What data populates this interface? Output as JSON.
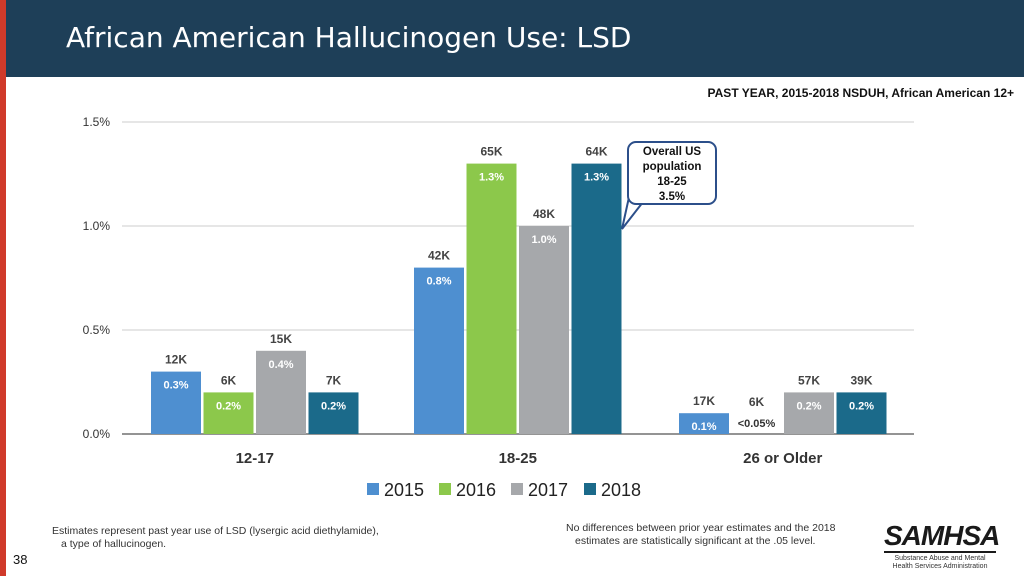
{
  "title": "African American Hallucinogen Use: LSD",
  "subtitle": "PAST YEAR, 2015-2018  NSDUH, African American 12+",
  "page_number": "38",
  "footnote_left": [
    "Estimates represent past year use of LSD (lysergic acid diethylamide),",
    "a type of hallucinogen."
  ],
  "footnote_right": [
    "No differences between prior year estimates and the 2018",
    "estimates are statistically significant at the .05 level."
  ],
  "logo": {
    "word": "SAMHSA",
    "sub": "Substance Abuse and Mental Health Services Administration"
  },
  "callout": [
    "Overall US",
    "population",
    "18-25",
    "3.5%"
  ],
  "colors": {
    "header": "#1e3f58",
    "accent_red": "#d03a2a",
    "s2015": "#4e8fd0",
    "s2016": "#8cc84b",
    "s2017": "#a6a8ab",
    "s2018": "#1b6a8a",
    "grid": "#cccccc"
  },
  "chart_data": {
    "type": "bar",
    "categories": [
      "12-17",
      "18-25",
      "26 or Older"
    ],
    "ylim": [
      0,
      1.5
    ],
    "yticks": [
      0.0,
      0.5,
      1.0,
      1.5
    ],
    "ytick_labels": [
      "0.0%",
      "0.5%",
      "1.0%",
      "1.5%"
    ],
    "series": [
      {
        "name": "2015",
        "color": "#4e8fd0",
        "values": [
          0.3,
          0.8,
          0.1
        ],
        "labels": [
          "0.3%",
          "0.8%",
          "0.1%"
        ],
        "counts": [
          "12K",
          "42K",
          "17K"
        ]
      },
      {
        "name": "2016",
        "color": "#8cc84b",
        "values": [
          0.2,
          1.3,
          0.0
        ],
        "labels": [
          "0.2%",
          "1.3%",
          "<0.05%"
        ],
        "counts": [
          "6K",
          "65K",
          "6K"
        ]
      },
      {
        "name": "2017",
        "color": "#a6a8ab",
        "values": [
          0.4,
          1.0,
          0.2
        ],
        "labels": [
          "0.4%",
          "1.0%",
          "0.2%"
        ],
        "counts": [
          "15K",
          "48K",
          "57K"
        ]
      },
      {
        "name": "2018",
        "color": "#1b6a8a",
        "values": [
          0.2,
          1.3,
          0.2
        ],
        "labels": [
          "0.2%",
          "1.3%",
          "0.2%"
        ],
        "counts": [
          "7K",
          "64K",
          "39K"
        ]
      }
    ]
  }
}
